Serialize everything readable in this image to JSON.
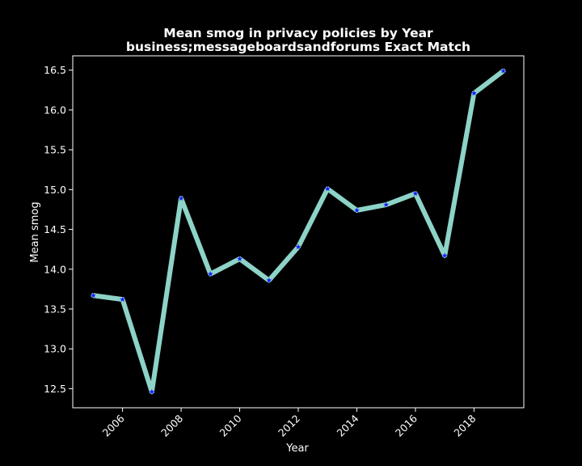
{
  "chart_data": {
    "type": "line",
    "title": "Mean smog in privacy policies by Year",
    "subtitle": "business;messageboardsandforums Exact Match",
    "xlabel": "Year",
    "ylabel": "Mean smog",
    "x": [
      2005,
      2006,
      2007,
      2008,
      2009,
      2010,
      2011,
      2012,
      2013,
      2014,
      2015,
      2016,
      2017,
      2018,
      2019
    ],
    "series": [
      {
        "values": [
          13.67,
          13.62,
          12.46,
          14.89,
          13.94,
          14.13,
          13.86,
          14.28,
          15.01,
          14.74,
          14.81,
          14.95,
          14.17,
          16.21,
          16.49
        ]
      }
    ],
    "xticks": [
      2006,
      2008,
      2010,
      2012,
      2014,
      2016,
      2018
    ],
    "yticks": [
      12.5,
      13.0,
      13.5,
      14.0,
      14.5,
      15.0,
      15.5,
      16.0,
      16.5
    ],
    "xlim": [
      2004.3,
      2019.7
    ],
    "ylim": [
      12.26,
      16.68
    ],
    "grid": false,
    "colors": {
      "background": "#000000",
      "line": "#8dd3c7",
      "marker": "#1a1aff",
      "axes": "#ffffff",
      "text": "#ffffff"
    }
  }
}
